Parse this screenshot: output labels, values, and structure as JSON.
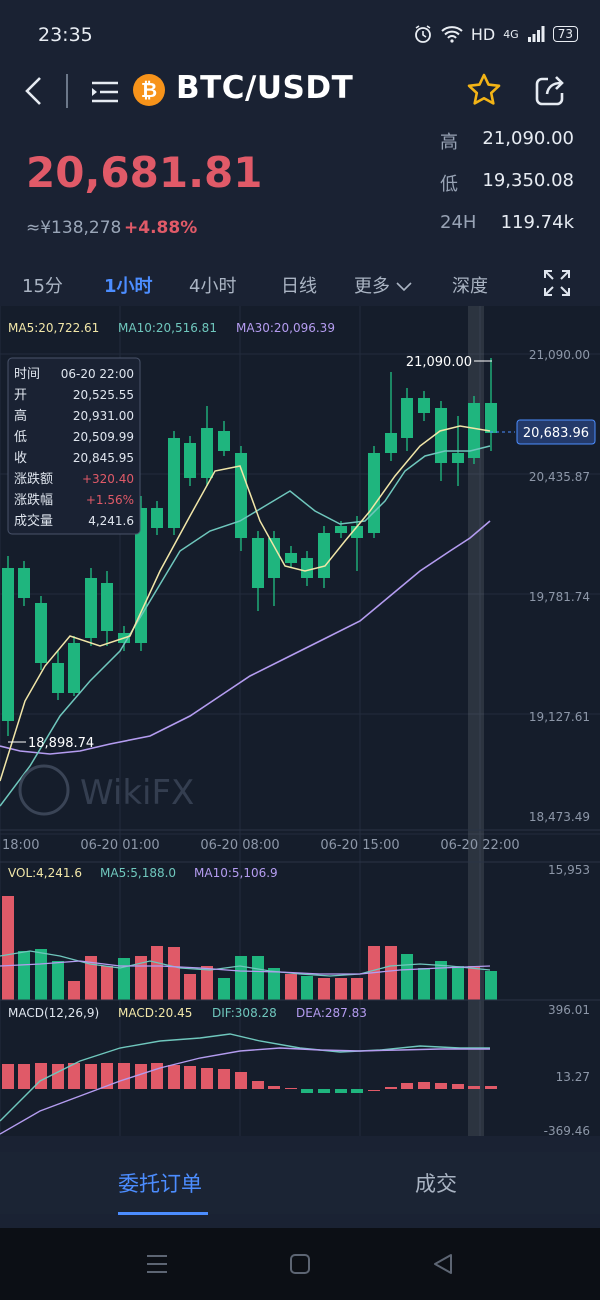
{
  "status_bar": {
    "time": "23:35",
    "network_label": "HD",
    "network_type": "4G",
    "battery": "73"
  },
  "header": {
    "pair": "BTC/USDT",
    "coin_glyph": "₿"
  },
  "ticker": {
    "last_price": "20,681.81",
    "cny_price": "≈¥138,278",
    "change_pct": "+4.88%",
    "high_label": "高",
    "high": "21,090.00",
    "low_label": "低",
    "low": "19,350.08",
    "vol_label": "24H",
    "vol": "119.74k"
  },
  "timeframes": [
    "15分",
    "1小时",
    "4小时",
    "日线",
    "更多",
    "深度"
  ],
  "active_timeframe": "1小时",
  "chart": {
    "ma_legend": {
      "ma5": "MA5:20,722.61",
      "ma10": "MA10:20,516.81",
      "ma30": "MA30:20,096.39"
    },
    "price_axis": [
      "21,090.00",
      "20,435.87",
      "19,781.74",
      "19,127.61",
      "18,473.49"
    ],
    "current_price_tag": "20,683.96",
    "high_marker": "21,090.00",
    "low_marker": "18,898.74",
    "time_axis": [
      "18:00",
      "06-20 01:00",
      "06-20 08:00",
      "06-20 15:00",
      "06-20 22:00"
    ],
    "watermark": "WikiFX",
    "tooltip": {
      "rows": [
        {
          "label": "时间",
          "value": "06-20 22:00"
        },
        {
          "label": "开",
          "value": "20,525.55"
        },
        {
          "label": "高",
          "value": "20,931.00"
        },
        {
          "label": "低",
          "value": "20,509.99"
        },
        {
          "label": "收",
          "value": "20,845.95"
        },
        {
          "label": "涨跌额",
          "value": "+320.40"
        },
        {
          "label": "涨跌幅",
          "value": "+1.56%"
        },
        {
          "label": "成交量",
          "value": "4,241.6"
        }
      ]
    },
    "volume_legend": {
      "vol": "VOL:4,241.6",
      "ma5": "MA5:5,188.0",
      "ma10": "MA10:5,106.9"
    },
    "volume_axis_max": "15,953",
    "macd_legend": {
      "params": "MACD(12,26,9)",
      "macd": "MACD:20.45",
      "dif": "DIF:308.28",
      "dea": "DEA:287.83"
    },
    "macd_axis": [
      "396.01",
      "13.27",
      "-369.46"
    ]
  },
  "bottom_tabs": [
    "委托订单",
    "成交"
  ],
  "colors": {
    "up": "#e05a68",
    "down": "#1fb57e",
    "accent": "#4c8dff",
    "ma5": "#f1e6a8",
    "ma10": "#6fc7bd",
    "ma30": "#b49cf0"
  }
}
